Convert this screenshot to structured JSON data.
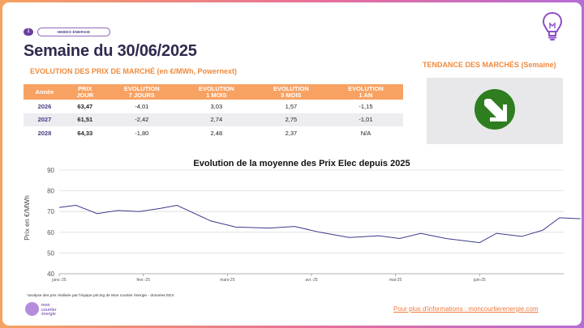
{
  "header": {
    "step_number": "1",
    "tag": "HEBDO ÉNERGIE",
    "title": "Semaine du 30/06/2025",
    "table_title": "EVOLUTION DES PRIX DE MARCHÉ (en €/MWh, Powernext)",
    "trend_title": "TENDANCE DES MARCHÉS (Semaine)"
  },
  "table": {
    "headers": [
      "Année",
      "PRIX\nJOUR",
      "EVOLUTION\n7 JOURS",
      "EVOLUTION\n1 MOIS",
      "EVOLUTION\n3 MOIS",
      "EVOLUTION\n1 AN"
    ],
    "rows": [
      [
        "2026",
        "63,47",
        "-4,01",
        "3,03",
        "1,57",
        "-1,15"
      ],
      [
        "2027",
        "61,51",
        "-2,42",
        "2,74",
        "2,75",
        "-1,01"
      ],
      [
        "2028",
        "64,33",
        "-1,80",
        "2,48",
        "2,37",
        "N/A"
      ]
    ]
  },
  "trend": {
    "icon": "down-right-arrow-icon",
    "color": "#2e7d1f"
  },
  "chart_data": {
    "type": "line",
    "title": "Evolution de la moyenne des Prix Elec depuis 2025",
    "ylabel": "Prix en €/MWh",
    "ylim": [
      40,
      90
    ],
    "yticks": [
      40,
      50,
      60,
      70,
      80,
      90
    ],
    "grid": true,
    "x_tick_labels": [
      "janv.-25",
      "févr.-25",
      "mars-25",
      "avr.-25",
      "mai-25",
      "juin-25"
    ],
    "x_range": [
      0,
      6
    ],
    "series": [
      {
        "color": "#3b3a8c",
        "x": [
          0,
          0.2,
          0.45,
          0.7,
          0.95,
          1.2,
          1.4,
          1.8,
          2.1,
          2.5,
          2.8,
          3.1,
          3.45,
          3.8,
          4.05,
          4.3,
          4.6,
          5.0,
          5.2,
          5.5,
          5.75,
          5.95,
          6.2
        ],
        "values": [
          72,
          73,
          69,
          70.5,
          70,
          71.5,
          73,
          65.5,
          62.5,
          62,
          62.8,
          60,
          57.5,
          58.3,
          57,
          59.5,
          57,
          55,
          59.5,
          58,
          61,
          67,
          66.5
        ]
      }
    ]
  },
  "footer": {
    "footnote": "*analyse des prix réalisée par l'équipe pricing de Mon courtier énergie -  données EEX",
    "logo_line1": "mon",
    "logo_line2": "courtier",
    "logo_line3": "énergie",
    "link": "Pour plus d'informations : moncourtierenergie.com"
  }
}
